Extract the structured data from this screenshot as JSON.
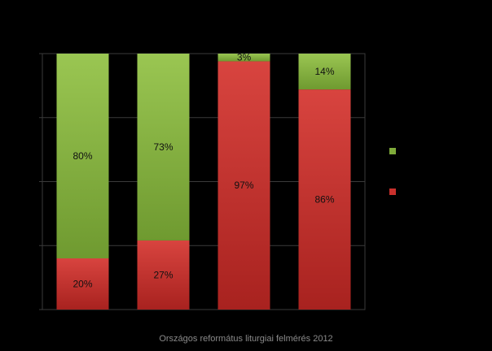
{
  "chart_data": {
    "type": "bar",
    "stacked": true,
    "orientation": "vertical",
    "categories": [
      "",
      "",
      "",
      ""
    ],
    "series": [
      {
        "color": "#c9302c",
        "values": [
          20,
          27,
          97,
          86
        ],
        "labels": [
          "20%",
          "27%",
          "97%",
          "86%"
        ]
      },
      {
        "color": "#7fab3a",
        "values": [
          80,
          73,
          3,
          14
        ],
        "labels": [
          "80%",
          "73%",
          "3%",
          "14%"
        ]
      }
    ],
    "ylim": [
      0,
      100
    ],
    "grid": true,
    "legend_position": "right",
    "title": "",
    "xlabel": "",
    "ylabel": ""
  },
  "footer": {
    "caption": "Országos református liturgiai felmérés 2012"
  }
}
